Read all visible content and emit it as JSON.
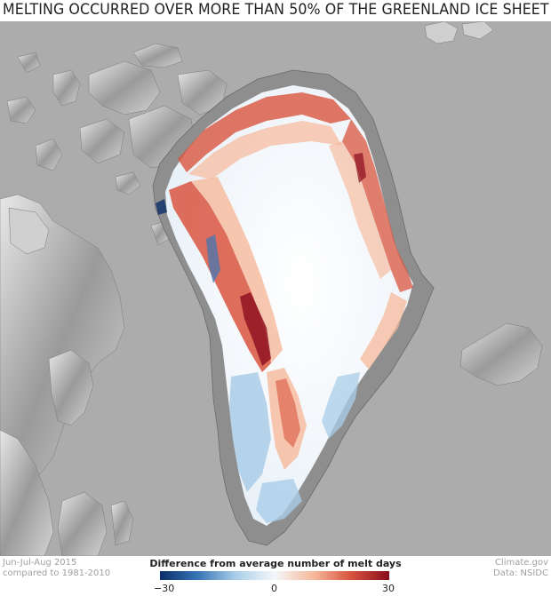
{
  "title": "MELTING OCCURRED OVER MORE THAN 50% OF THE GREENLAND ICE SHEET",
  "footer": {
    "period_line1": "Jun-Jul-Aug 2015",
    "period_line2": "compared to 1981-2010",
    "credit_line1": "Climate.gov",
    "credit_line2": "Data: NSIDC"
  },
  "legend": {
    "title": "Difference from average number of melt days",
    "min_label": "−30",
    "mid_label": "0",
    "max_label": "30",
    "min": -30,
    "max": 30,
    "colors": [
      "#0b2e6b",
      "#3a78b8",
      "#a9cde8",
      "#f4f7fb",
      "#f6b99b",
      "#d9553f",
      "#8a0d1e"
    ]
  },
  "map": {
    "ocean_color": "#acacac",
    "regions": [
      "Greenland",
      "Canadian Arctic Archipelago",
      "Iceland",
      "Svalbard"
    ]
  }
}
